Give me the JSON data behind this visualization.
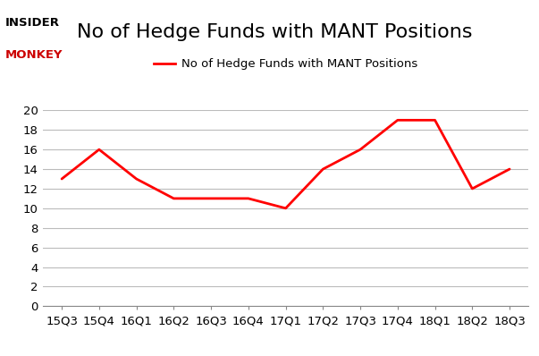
{
  "x_labels": [
    "15Q3",
    "15Q4",
    "16Q1",
    "16Q2",
    "16Q3",
    "16Q4",
    "17Q1",
    "17Q2",
    "17Q3",
    "17Q4",
    "18Q1",
    "18Q2",
    "18Q3"
  ],
  "y_values": [
    13,
    16,
    13,
    11,
    11,
    11,
    10,
    14,
    16,
    19,
    19,
    12,
    14
  ],
  "line_color": "#FF0000",
  "line_width": 2.0,
  "title": "No of Hedge Funds with MANT Positions",
  "legend_label": "No of Hedge Funds with MANT Positions",
  "ylim": [
    0,
    20
  ],
  "yticks": [
    0,
    2,
    4,
    6,
    8,
    10,
    12,
    14,
    16,
    18,
    20
  ],
  "background_color": "#FFFFFF",
  "grid_color": "#BBBBBB",
  "title_fontsize": 16,
  "tick_fontsize": 9.5,
  "legend_fontsize": 9.5
}
